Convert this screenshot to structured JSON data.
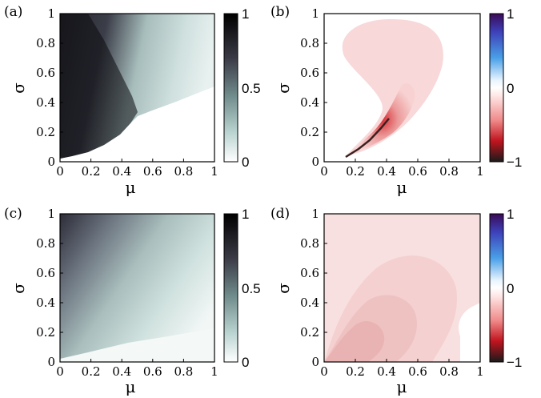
{
  "chart_data": [
    {
      "type": "heatmap",
      "panel_label": "(a)",
      "xlabel": "μ",
      "ylabel": "σ",
      "xlim": [
        0,
        1
      ],
      "ylim": [
        0,
        1
      ],
      "xticks": [
        "0",
        "0.2",
        "0.4",
        "0.6",
        "0.8",
        "1"
      ],
      "yticks": [
        "0",
        "0.2",
        "0.4",
        "0.6",
        "0.8",
        "1"
      ],
      "colormap": "gray-teal",
      "colorbar": {
        "ticks": [
          "1",
          "0.5",
          "0"
        ],
        "range": [
          0,
          1
        ]
      },
      "regions": [
        {
          "description": "value ~1 (black) near mu=0, sigma 0.02-1, falling to 0 beyond sigma~0.3 at mu~0.5",
          "value": 1
        },
        {
          "description": "value ~0 (white) below curve from (0,0.02) to (0.5,0.3) to (1,0.5)",
          "value": 0
        }
      ]
    },
    {
      "type": "heatmap",
      "panel_label": "(b)",
      "xlabel": "μ",
      "ylabel": "σ",
      "xlim": [
        0,
        1
      ],
      "ylim": [
        0,
        1
      ],
      "xticks": [
        "0",
        "0.2",
        "0.4",
        "0.6",
        "0.8",
        "1"
      ],
      "yticks": [
        "0",
        "0.2",
        "0.4",
        "0.6",
        "0.8",
        "1"
      ],
      "colormap": "red-white-blue",
      "colorbar": {
        "ticks": [
          "1",
          "0",
          "−1"
        ],
        "range": [
          -1,
          1
        ]
      },
      "regions": [
        {
          "description": "teardrop region of small negative values, mu 0.15-0.75, sigma 0.02-0.88",
          "value": -0.1
        },
        {
          "description": "strong negative values along ridge from (0.15,0.02) to (0.45,0.3)",
          "value": -1
        }
      ]
    },
    {
      "type": "heatmap",
      "panel_label": "(c)",
      "xlabel": "μ",
      "ylabel": "σ",
      "xlim": [
        0,
        1
      ],
      "ylim": [
        0,
        1
      ],
      "xticks": [
        "0",
        "0.2",
        "0.4",
        "0.6",
        "0.8",
        "1"
      ],
      "yticks": [
        "0",
        "0.2",
        "0.4",
        "0.6",
        "0.8",
        "1"
      ],
      "colormap": "gray-teal",
      "colorbar": {
        "ticks": [
          "1",
          "0.5",
          "0"
        ],
        "range": [
          0,
          1
        ]
      },
      "regions": [
        {
          "description": "dark gray near mu=0 large sigma, fading to light teal toward large mu",
          "value": 0.75
        },
        {
          "description": "near white at small sigma and large mu",
          "value": 0.02
        }
      ]
    },
    {
      "type": "heatmap",
      "panel_label": "(d)",
      "xlabel": "μ",
      "ylabel": "σ",
      "xlim": [
        0,
        1
      ],
      "ylim": [
        0,
        1
      ],
      "xticks": [
        "0",
        "0.2",
        "0.4",
        "0.6",
        "0.8",
        "1"
      ],
      "yticks": [
        "0",
        "0.2",
        "0.4",
        "0.6",
        "0.8",
        "1"
      ],
      "colormap": "red-white-blue",
      "colorbar": {
        "ticks": [
          "1",
          "0",
          "−1"
        ],
        "range": [
          -1,
          1
        ]
      },
      "regions": [
        {
          "description": "light pink (small negative) across most of domain",
          "value": -0.08
        },
        {
          "description": "slightly stronger negative nested lobes near mu 0.1-0.4, sigma 0-0.3",
          "value": -0.2
        },
        {
          "description": "white (zero) notch at mu>0.8, sigma<0.25",
          "value": 0
        }
      ]
    }
  ]
}
